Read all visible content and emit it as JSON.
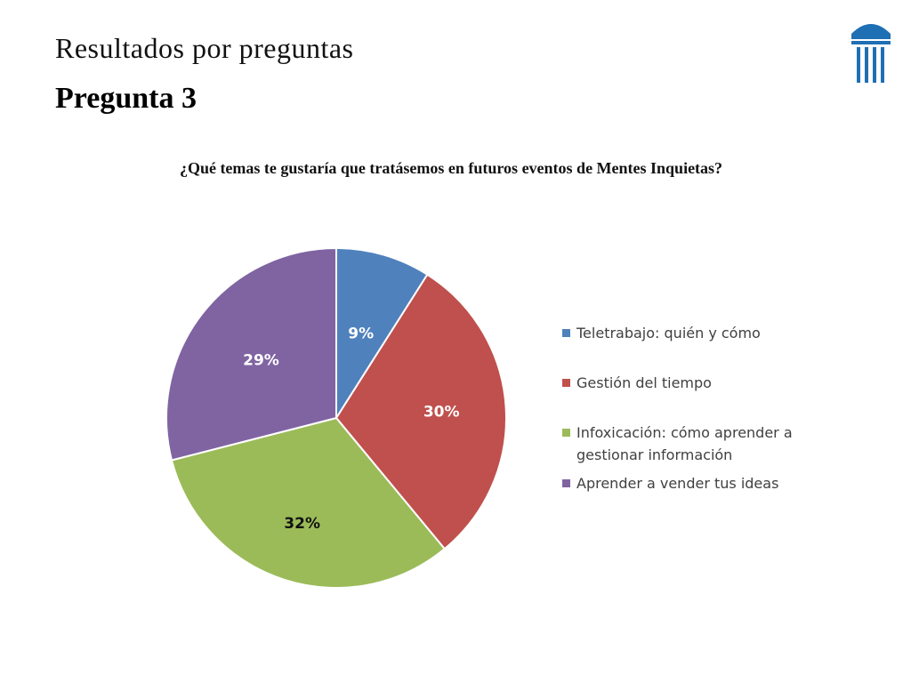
{
  "slide": {
    "title": "Resultados por preguntas",
    "subtitle": "Pregunta 3"
  },
  "chart_data": {
    "type": "pie",
    "title": "¿Qué temas te gustaría que tratásemos en futuros eventos de Mentes Inquietas?",
    "categories": [
      "Teletrabajo: quién y cómo",
      "Gestión del tiempo",
      "Infoxicación: cómo aprender a gestionar información",
      "Aprender a vender tus ideas"
    ],
    "values": [
      9,
      30,
      32,
      29
    ],
    "labels": [
      "9%",
      "30%",
      "32%",
      "29%"
    ],
    "colors": [
      "#4F81BD",
      "#C0504D",
      "#9BBB59",
      "#8064A2"
    ],
    "legend_position": "right"
  },
  "colors": {
    "logo": "#1F6FB5"
  }
}
